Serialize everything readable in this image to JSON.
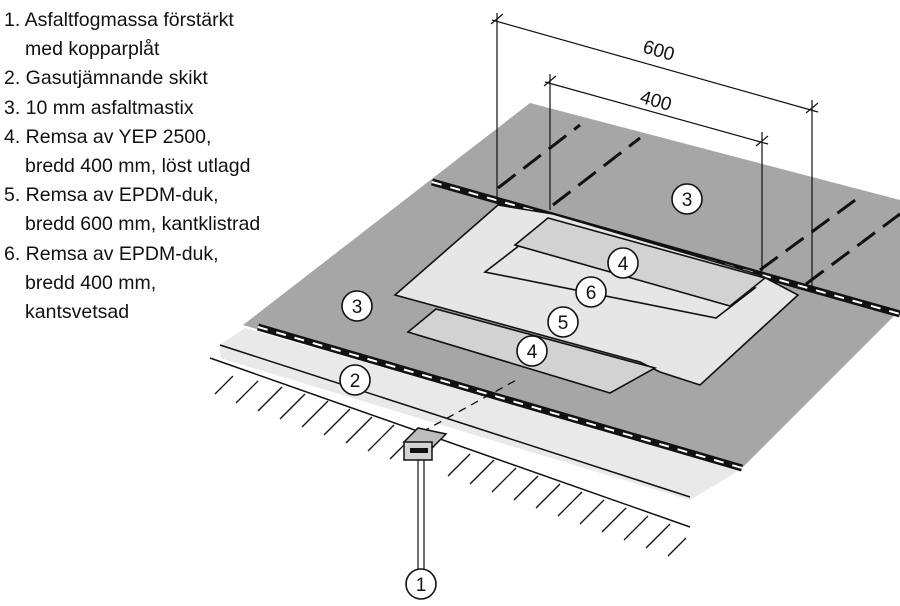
{
  "legend": [
    {
      "lines": [
        "1. Asfaltfogmassa förstärkt",
        "med kopparplåt"
      ]
    },
    {
      "lines": [
        "2. Gasutjämnande skikt"
      ]
    },
    {
      "lines": [
        "3. 10 mm asfaltmastix"
      ]
    },
    {
      "lines": [
        "4. Remsa av YEP 2500,",
        "bredd 400 mm, löst utlagd"
      ]
    },
    {
      "lines": [
        "5. Remsa av EPDM-duk,",
        "bredd 600 mm, kantklistrad"
      ]
    },
    {
      "lines": [
        "6. Remsa av EPDM-duk,",
        "bredd 400 mm,",
        "kantsvetsad"
      ]
    }
  ],
  "dimensions": {
    "outer": "600",
    "inner": "400"
  },
  "callouts": {
    "c1": "1",
    "c2": "2",
    "c3_top": "3",
    "c3_left": "3",
    "c4_top": "4",
    "c4_bottom": "4",
    "c5": "5",
    "c6": "6"
  },
  "colors": {
    "mastic": "#a6a6a6",
    "gas_layer": "#e9e9e9",
    "strip_4": "#d2d2d2",
    "strip_5_6": "#e6e6e6",
    "line": "#111111"
  }
}
